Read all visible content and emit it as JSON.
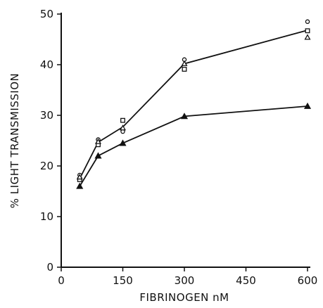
{
  "chart_data": {
    "type": "line",
    "xlabel": "FIBRINOGEN nM",
    "ylabel": "% LIGHT TRANSMISSION",
    "xlim": [
      0,
      600
    ],
    "ylim": [
      0,
      50
    ],
    "xticks": [
      0,
      150,
      300,
      450,
      600
    ],
    "yticks": [
      0,
      10,
      20,
      30,
      40,
      50
    ],
    "grid": false,
    "line_color": "#111111",
    "series": [
      {
        "marker": "open-circle",
        "line": true,
        "points": [
          [
            45,
            18.2
          ],
          [
            90,
            25.2
          ],
          [
            150,
            26.8
          ],
          [
            300,
            41.0
          ],
          [
            600,
            48.5
          ]
        ]
      },
      {
        "marker": "open-square",
        "line": false,
        "points": [
          [
            45,
            17.3
          ],
          [
            90,
            24.2
          ],
          [
            150,
            29.0
          ],
          [
            300,
            39.1
          ],
          [
            600,
            46.7
          ]
        ]
      },
      {
        "marker": "open-triangle",
        "line": false,
        "points": [
          [
            45,
            17.8
          ],
          [
            90,
            24.8
          ],
          [
            150,
            27.5
          ],
          [
            300,
            40.2
          ],
          [
            600,
            45.4
          ]
        ]
      },
      {
        "marker": "filled-triangle",
        "line": true,
        "points": [
          [
            45,
            16.0
          ],
          [
            90,
            22.0
          ],
          [
            150,
            24.5
          ],
          [
            300,
            29.8
          ],
          [
            600,
            31.8
          ]
        ]
      }
    ],
    "fit_line": [
      [
        45,
        17.5
      ],
      [
        90,
        24.7
      ],
      [
        150,
        27.7
      ],
      [
        300,
        40.2
      ],
      [
        600,
        46.8
      ]
    ]
  }
}
